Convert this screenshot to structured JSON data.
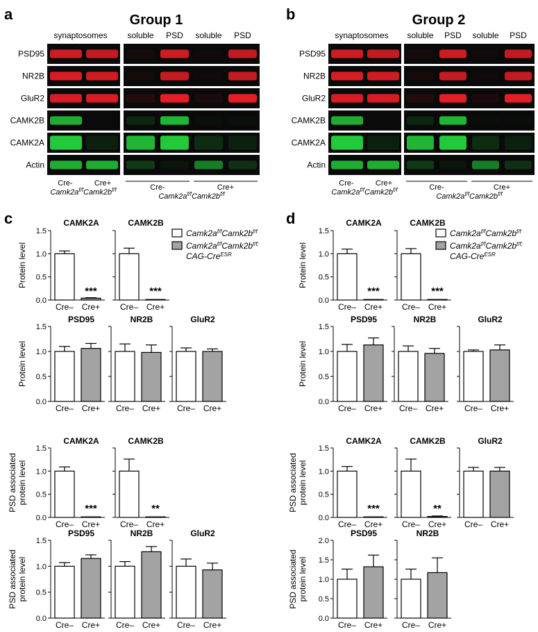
{
  "panel_letters": [
    "a",
    "b",
    "c",
    "d"
  ],
  "group_titles": [
    "Group 1",
    "Group 2"
  ],
  "blot_labels": {
    "synaptosomes": "synaptosomes",
    "soluble": "soluble",
    "psd": "PSD",
    "proteins": [
      "PSD95",
      "NR2B",
      "GluR2",
      "CAMK2B",
      "CAMK2A",
      "Actin"
    ],
    "cre_minus": "Cre-",
    "cre_plus": "Cre+",
    "genotype": "Camk2a",
    "genotype_sup": "f/f",
    "genotype2": "Camk2b",
    "genotype2_sup": "f/f"
  },
  "legend": {
    "entry1_a": "Camk2a",
    "entry1_sup1": "f/f",
    "entry1_b": "Camk2b",
    "entry1_sup2": "f/f",
    "entry2_a": "Camk2a",
    "entry2_sup1": "f/f",
    "entry2_b": "Camk2b",
    "entry2_sup2": "f/f;",
    "entry2_line2": "CAG-Cre",
    "entry2_sup3": "ESR"
  },
  "colors": {
    "red_band": "#e41e26",
    "green_band": "#22c93a",
    "blot_bg": "#0a0a0a",
    "bar_white": "#ffffff",
    "bar_gray": "#a3a3a3"
  },
  "chart_data": [
    {
      "panel": "c",
      "type": "bar",
      "title": "CAMK2A",
      "ylabel": "Protein level",
      "ylim": [
        0,
        1.5
      ],
      "yticks": [
        "0.0",
        "0.5",
        "1.0",
        "1.5"
      ],
      "categories": [
        "Cre–",
        "Cre+"
      ],
      "values": [
        1.0,
        0.04
      ],
      "errors": [
        0.06,
        0.01
      ],
      "annotation": "***"
    },
    {
      "panel": "c",
      "type": "bar",
      "title": "CAMK2B",
      "ylabel": "",
      "ylim": [
        0,
        1.5
      ],
      "yticks": [
        "0.0",
        "0.5",
        "1.0",
        "1.5"
      ],
      "categories": [
        "Cre–",
        "Cre+"
      ],
      "values": [
        1.0,
        0.01
      ],
      "errors": [
        0.12,
        0.0
      ],
      "annotation": "***"
    },
    {
      "panel": "c",
      "type": "bar",
      "title": "PSD95",
      "ylabel": "Protein level",
      "ylim": [
        0,
        1.5
      ],
      "yticks": [
        "0.0",
        "0.5",
        "1.0",
        "1.5"
      ],
      "categories": [
        "Cre–",
        "Cre+"
      ],
      "values": [
        1.0,
        1.06
      ],
      "errors": [
        0.1,
        0.1
      ],
      "annotation": ""
    },
    {
      "panel": "c",
      "type": "bar",
      "title": "NR2B",
      "ylabel": "",
      "ylim": [
        0,
        1.5
      ],
      "yticks": [
        "0.0",
        "0.5",
        "1.0",
        "1.5"
      ],
      "categories": [
        "Cre–",
        "Cre+"
      ],
      "values": [
        1.0,
        0.98
      ],
      "errors": [
        0.15,
        0.15
      ],
      "annotation": ""
    },
    {
      "panel": "c",
      "type": "bar",
      "title": "GluR2",
      "ylabel": "",
      "ylim": [
        0,
        1.5
      ],
      "yticks": [
        "0.0",
        "0.5",
        "1.0",
        "1.5"
      ],
      "categories": [
        "Cre–",
        "Cre+"
      ],
      "values": [
        1.0,
        1.0
      ],
      "errors": [
        0.07,
        0.05
      ],
      "annotation": ""
    },
    {
      "panel": "c",
      "type": "bar",
      "title": "CAMK2A",
      "ylabel": "PSD associated protein level",
      "ylim": [
        0,
        1.5
      ],
      "yticks": [
        "0.0",
        "0.5",
        "1.0",
        "1.5"
      ],
      "categories": [
        "Cre–",
        "Cre+"
      ],
      "values": [
        1.0,
        0.0
      ],
      "errors": [
        0.09,
        0.0
      ],
      "annotation": "***"
    },
    {
      "panel": "c",
      "type": "bar",
      "title": "CAMK2B",
      "ylabel": "",
      "ylim": [
        0,
        1.5
      ],
      "yticks": [
        "0.0",
        "0.5",
        "1.0",
        "1.5"
      ],
      "categories": [
        "Cre–",
        "Cre+"
      ],
      "values": [
        1.0,
        0.0
      ],
      "errors": [
        0.26,
        0.0
      ],
      "annotation": "**"
    },
    {
      "panel": "c",
      "type": "bar",
      "title": "PSD95",
      "ylabel": "PSD associated protein level",
      "ylim": [
        0,
        1.5
      ],
      "yticks": [
        "0.0",
        "0.5",
        "1.0",
        "1.5"
      ],
      "categories": [
        "Cre–",
        "Cre+"
      ],
      "values": [
        1.0,
        1.15
      ],
      "errors": [
        0.07,
        0.07
      ],
      "annotation": ""
    },
    {
      "panel": "c",
      "type": "bar",
      "title": "NR2B",
      "ylabel": "",
      "ylim": [
        0,
        1.5
      ],
      "yticks": [
        "0.0",
        "0.5",
        "1.0",
        "1.5"
      ],
      "categories": [
        "Cre–",
        "Cre+"
      ],
      "values": [
        1.0,
        1.28
      ],
      "errors": [
        0.09,
        0.1
      ],
      "annotation": ""
    },
    {
      "panel": "c",
      "type": "bar",
      "title": "GluR2",
      "ylabel": "",
      "ylim": [
        0,
        1.5
      ],
      "yticks": [
        "0.0",
        "0.5",
        "1.0",
        "1.5"
      ],
      "categories": [
        "Cre–",
        "Cre+"
      ],
      "values": [
        1.0,
        0.93
      ],
      "errors": [
        0.14,
        0.13
      ],
      "annotation": ""
    },
    {
      "panel": "d",
      "type": "bar",
      "title": "CAMK2A",
      "ylabel": "Protein level",
      "ylim": [
        0,
        1.5
      ],
      "yticks": [
        "0.0",
        "0.5",
        "1.0",
        "1.5"
      ],
      "categories": [
        "Cre–",
        "Cre+"
      ],
      "values": [
        1.0,
        0.01
      ],
      "errors": [
        0.1,
        0.0
      ],
      "annotation": "***"
    },
    {
      "panel": "d",
      "type": "bar",
      "title": "CAMK2B",
      "ylabel": "",
      "ylim": [
        0,
        1.5
      ],
      "yticks": [
        "0.0",
        "0.5",
        "1.0",
        "1.5"
      ],
      "categories": [
        "Cre–",
        "Cre+"
      ],
      "values": [
        1.0,
        0.01
      ],
      "errors": [
        0.11,
        0.0
      ],
      "annotation": "***"
    },
    {
      "panel": "d",
      "type": "bar",
      "title": "PSD95",
      "ylabel": "Protein level",
      "ylim": [
        0,
        1.5
      ],
      "yticks": [
        "0.0",
        "0.5",
        "1.0",
        "1.5"
      ],
      "categories": [
        "Cre–",
        "Cre+"
      ],
      "values": [
        1.0,
        1.13
      ],
      "errors": [
        0.14,
        0.14
      ],
      "annotation": ""
    },
    {
      "panel": "d",
      "type": "bar",
      "title": "NR2B",
      "ylabel": "",
      "ylim": [
        0,
        1.5
      ],
      "yticks": [
        "0.0",
        "0.5",
        "1.0",
        "1.5"
      ],
      "categories": [
        "Cre–",
        "Cre+"
      ],
      "values": [
        1.0,
        0.96
      ],
      "errors": [
        0.11,
        0.1
      ],
      "annotation": ""
    },
    {
      "panel": "d",
      "type": "bar",
      "title": "GluR2",
      "ylabel": "",
      "ylim": [
        0,
        1.5
      ],
      "yticks": [
        "0.0",
        "0.5",
        "1.0",
        "1.5"
      ],
      "categories": [
        "Cre–",
        "Cre+"
      ],
      "values": [
        1.0,
        1.03
      ],
      "errors": [
        0.03,
        0.1
      ],
      "annotation": ""
    },
    {
      "panel": "d",
      "type": "bar",
      "title": "CAMK2A",
      "ylabel": "PSD associated protein level",
      "ylim": [
        0,
        1.5
      ],
      "yticks": [
        "0.0",
        "0.5",
        "1.0",
        "1.5"
      ],
      "categories": [
        "Cre–",
        "Cre+"
      ],
      "values": [
        1.0,
        0.0
      ],
      "errors": [
        0.1,
        0.0
      ],
      "annotation": "***"
    },
    {
      "panel": "d",
      "type": "bar",
      "title": "CAMK2B",
      "ylabel": "",
      "ylim": [
        0,
        1.5
      ],
      "yticks": [
        "0.0",
        "0.5",
        "1.0",
        "1.5"
      ],
      "categories": [
        "Cre–",
        "Cre+"
      ],
      "values": [
        1.0,
        0.02
      ],
      "errors": [
        0.26,
        0.01
      ],
      "annotation": "**"
    },
    {
      "panel": "d",
      "type": "bar",
      "title": "GluR2",
      "ylabel": "",
      "ylim": [
        0,
        1.5
      ],
      "yticks": [
        "0.0",
        "0.5",
        "1.0",
        "1.5"
      ],
      "categories": [
        "Cre–",
        "Cre+"
      ],
      "values": [
        1.0,
        1.0
      ],
      "errors": [
        0.08,
        0.08
      ],
      "annotation": ""
    },
    {
      "panel": "d",
      "type": "bar",
      "title": "PSD95",
      "ylabel": "PSD associated protein level",
      "ylim": [
        0,
        2.0
      ],
      "yticks": [
        "0.0",
        "0.5",
        "1.0",
        "1.5",
        "2.0"
      ],
      "categories": [
        "Cre–",
        "Cre+"
      ],
      "values": [
        1.0,
        1.32
      ],
      "errors": [
        0.26,
        0.3
      ],
      "annotation": ""
    },
    {
      "panel": "d",
      "type": "bar",
      "title": "NR2B",
      "ylabel": "",
      "ylim": [
        0,
        2.0
      ],
      "yticks": [
        "0.0",
        "0.5",
        "1.0",
        "1.5",
        "2.0"
      ],
      "categories": [
        "Cre–",
        "Cre+"
      ],
      "values": [
        1.0,
        1.17
      ],
      "errors": [
        0.26,
        0.38
      ],
      "annotation": ""
    }
  ]
}
